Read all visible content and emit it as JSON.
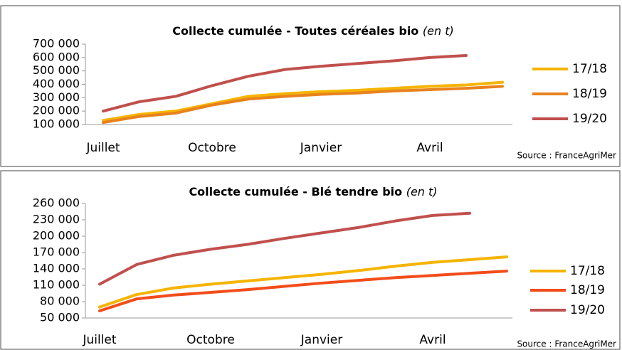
{
  "chart_data": [
    {
      "type": "line",
      "title": "Collecte cumulée - Toutes céréales bio",
      "title_unit": "(en t)",
      "source": "Source : FranceAgriMer",
      "categories": [
        "Juillet",
        null,
        null,
        "Octobre",
        null,
        null,
        "Janvier",
        null,
        null,
        "Avril",
        null,
        null
      ],
      "ylim": [
        100000,
        700000
      ],
      "yticks": [
        {
          "value": 100000,
          "label": "100 000"
        },
        {
          "value": 200000,
          "label": "200 000"
        },
        {
          "value": 300000,
          "label": "300 000"
        },
        {
          "value": 400000,
          "label": "400 000"
        },
        {
          "value": 500000,
          "label": "500 000"
        },
        {
          "value": 600000,
          "label": "600 000"
        },
        {
          "value": 700000,
          "label": "700 000"
        }
      ],
      "series": [
        {
          "name": "17/18",
          "color": "#f5b400",
          "values": [
            130000,
            175000,
            200000,
            255000,
            310000,
            330000,
            345000,
            355000,
            370000,
            385000,
            395000,
            415000
          ]
        },
        {
          "name": "18/19",
          "color": "#e8821e",
          "values": [
            115000,
            160000,
            185000,
            245000,
            290000,
            310000,
            325000,
            335000,
            350000,
            360000,
            370000,
            385000
          ]
        },
        {
          "name": "19/20",
          "color": "#c0504d",
          "values": [
            200000,
            270000,
            310000,
            390000,
            460000,
            510000,
            535000,
            555000,
            575000,
            600000,
            615000,
            null
          ]
        }
      ]
    },
    {
      "type": "line",
      "title": "Collecte cumulée - Blé tendre bio",
      "title_unit": "(en t)",
      "source": "Source : FranceAgriMer",
      "categories": [
        "Juillet",
        null,
        null,
        "Octobre",
        null,
        null,
        "Janvier",
        null,
        null,
        "Avril",
        null,
        null
      ],
      "ylim": [
        50000,
        260000
      ],
      "yticks": [
        {
          "value": 50000,
          "label": "50 000"
        },
        {
          "value": 80000,
          "label": "80 000"
        },
        {
          "value": 110000,
          "label": "110 000"
        },
        {
          "value": 140000,
          "label": "140 000"
        },
        {
          "value": 170000,
          "label": "170 000"
        },
        {
          "value": 200000,
          "label": "200 000"
        },
        {
          "value": 230000,
          "label": "230 000"
        },
        {
          "value": 260000,
          "label": "260 000"
        }
      ],
      "series": [
        {
          "name": "17/18",
          "color": "#f5b400",
          "values": [
            70000,
            93000,
            105000,
            112000,
            118000,
            124000,
            130000,
            137000,
            145000,
            152000,
            157000,
            162000
          ]
        },
        {
          "name": "18/19",
          "color": "#f24d1a",
          "values": [
            63000,
            85000,
            92000,
            97000,
            102000,
            108000,
            114000,
            119000,
            124000,
            128000,
            132000,
            136000
          ]
        },
        {
          "name": "19/20",
          "color": "#c0504d",
          "values": [
            112000,
            148000,
            165000,
            176000,
            185000,
            196000,
            206000,
            216000,
            228000,
            238000,
            242000,
            null
          ]
        }
      ]
    }
  ]
}
